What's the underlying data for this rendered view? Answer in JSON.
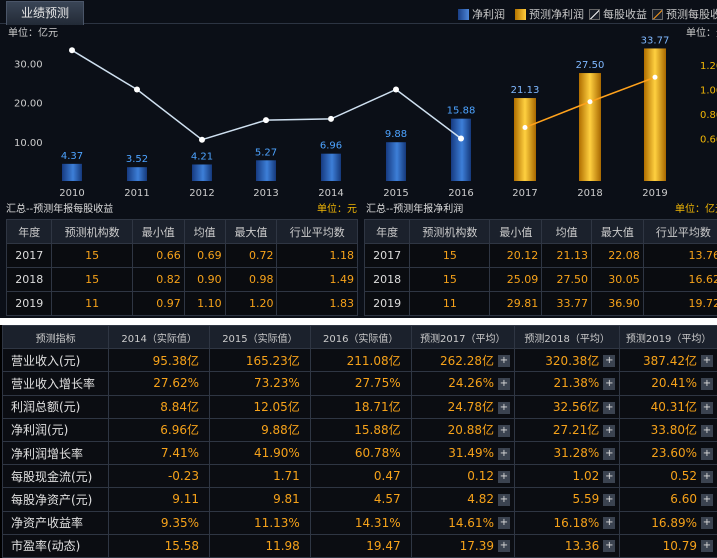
{
  "tab_label": "业绩预测",
  "legend": [
    "净利润",
    "预测净利润",
    "每股收益",
    "预测每股收"
  ],
  "left_unit": "单位：亿元",
  "right_unit": "单位：元",
  "chart_data": {
    "type": "bar",
    "categories": [
      "2010",
      "2011",
      "2012",
      "2013",
      "2014",
      "2015",
      "2016",
      "2017",
      "2018",
      "2019"
    ],
    "series": [
      {
        "name": "净利润",
        "values": [
          4.37,
          3.52,
          4.21,
          5.27,
          6.96,
          9.88,
          15.88,
          null,
          null,
          null
        ]
      },
      {
        "name": "预测净利润",
        "values": [
          null,
          null,
          null,
          null,
          null,
          null,
          null,
          21.13,
          27.5,
          33.77
        ]
      },
      {
        "name": "每股收益",
        "values": [
          1.32,
          1.0,
          0.59,
          0.75,
          0.76,
          1.0,
          0.6,
          null,
          null,
          null
        ]
      },
      {
        "name": "预测每股收益",
        "values": [
          null,
          null,
          null,
          null,
          null,
          null,
          null,
          0.69,
          0.9,
          1.1
        ]
      }
    ],
    "yticks_left": [
      "30.00",
      "20.00",
      "10.00"
    ],
    "yticks_right": [
      "1.20",
      "1.00",
      "0.80",
      "0.60"
    ],
    "ylim_left": [
      0,
      40
    ],
    "ylim_right": [
      0.4,
      1.4
    ]
  },
  "eps_caption": "汇总--预测年报每股收益",
  "eps_unit": "单位：元",
  "profit_caption": "汇总--预测年报净利润",
  "profit_unit": "单位：亿元",
  "eps_table": {
    "headers": [
      "年度",
      "预测机构数",
      "最小值",
      "均值",
      "最大值",
      "行业平均数"
    ],
    "rows": [
      [
        "2017",
        "15",
        "0.66",
        "0.69",
        "0.72",
        "1.18"
      ],
      [
        "2018",
        "15",
        "0.82",
        "0.90",
        "0.98",
        "1.49"
      ],
      [
        "2019",
        "11",
        "0.97",
        "1.10",
        "1.20",
        "1.83"
      ]
    ]
  },
  "profit_table": {
    "headers": [
      "年度",
      "预测机构数",
      "最小值",
      "均值",
      "最大值",
      "行业平均数"
    ],
    "rows": [
      [
        "2017",
        "15",
        "20.12",
        "21.13",
        "22.08",
        "13.76"
      ],
      [
        "2018",
        "15",
        "25.09",
        "27.50",
        "30.05",
        "16.62"
      ],
      [
        "2019",
        "11",
        "29.81",
        "33.77",
        "36.90",
        "19.72"
      ]
    ]
  },
  "forecast_table": {
    "headers": [
      "预测指标",
      "2014（实际值）",
      "2015（实际值）",
      "2016（实际值）",
      "预测2017（平均）",
      "预测2018（平均）",
      "预测2019（平均）"
    ],
    "plus_label": "+",
    "rows": [
      [
        "营业收入(元)",
        "95.38亿",
        "165.23亿",
        "211.08亿",
        "262.28亿",
        "320.38亿",
        "387.42亿"
      ],
      [
        "营业收入增长率",
        "27.62%",
        "73.23%",
        "27.75%",
        "24.26%",
        "21.38%",
        "20.41%"
      ],
      [
        "利润总额(元)",
        "8.84亿",
        "12.05亿",
        "18.71亿",
        "24.78亿",
        "32.56亿",
        "40.31亿"
      ],
      [
        "净利润(元)",
        "6.96亿",
        "9.88亿",
        "15.88亿",
        "20.88亿",
        "27.21亿",
        "33.80亿"
      ],
      [
        "净利润增长率",
        "7.41%",
        "41.90%",
        "60.78%",
        "31.49%",
        "31.28%",
        "23.60%"
      ],
      [
        "每股现金流(元)",
        "-0.23",
        "1.71",
        "0.47",
        "0.12",
        "1.02",
        "0.52"
      ],
      [
        "每股净资产(元)",
        "9.11",
        "9.81",
        "4.57",
        "4.82",
        "5.59",
        "6.60"
      ],
      [
        "净资产收益率",
        "9.35%",
        "11.13%",
        "14.31%",
        "14.61%",
        "16.18%",
        "16.89%"
      ],
      [
        "市盈率(动态)",
        "15.58",
        "11.98",
        "19.47",
        "17.39",
        "13.36",
        "10.79"
      ]
    ]
  }
}
